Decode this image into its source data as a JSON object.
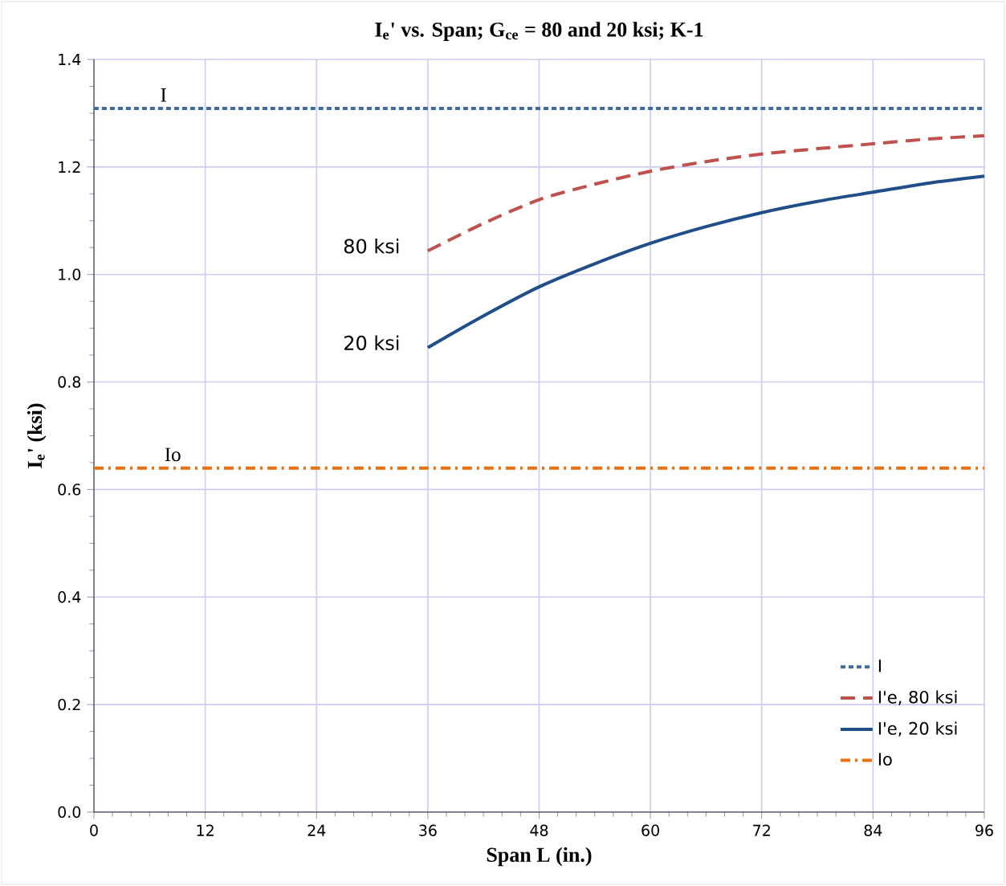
{
  "chart_data": {
    "type": "line",
    "title": "I$_{e}$' vs. Span; G$_{ce}$ = 80 and 20 ksi; K-1",
    "xlabel": "Span L  (in.)",
    "ylabel": "I$_{e}$'  (ksi)",
    "xlim": [
      0,
      96
    ],
    "xticks": [
      0,
      12,
      24,
      36,
      48,
      60,
      72,
      84,
      96
    ],
    "ylim": [
      0,
      1.4
    ],
    "yticks": [
      {
        "value": 0,
        "label": "0.0"
      },
      0.2,
      0.4,
      0.6,
      0.8,
      {
        "value": 1,
        "label": "1.0"
      },
      1.2,
      1.4
    ],
    "grid": true,
    "legend": "bottom right",
    "series": [
      {
        "name": "I",
        "color": "#3e6aa0",
        "line_style": "dotted",
        "x": [
          0,
          96
        ],
        "values": [
          1.309,
          1.309
        ]
      },
      {
        "name": "I'e, 80 ksi",
        "color": "#c0504d",
        "line_style": "dashed",
        "x": [
          36,
          42,
          48,
          54,
          60,
          66,
          72,
          78,
          84,
          90,
          96
        ],
        "values": [
          1.044,
          1.095,
          1.139,
          1.168,
          1.192,
          1.21,
          1.224,
          1.234,
          1.243,
          1.252,
          1.258
        ]
      },
      {
        "name": "I'e, 20 ksi",
        "color": "#1f4e89",
        "line_style": "solid",
        "x": [
          36,
          42,
          48,
          54,
          60,
          66,
          72,
          78,
          84,
          90,
          96
        ],
        "values": [
          0.864,
          0.923,
          0.977,
          1.02,
          1.058,
          1.089,
          1.115,
          1.136,
          1.153,
          1.17,
          1.183
        ]
      },
      {
        "name": "Io",
        "color": "#e8700f",
        "line_style": "dashdot",
        "x": [
          0,
          96
        ],
        "values": [
          0.64,
          0.64
        ]
      }
    ],
    "annotations": [
      {
        "text": "I",
        "x": 7.5,
        "y": 1.309
      },
      {
        "text": "Io",
        "x": 8.5,
        "y": 0.64
      },
      {
        "text": "80 ksi",
        "x": 36,
        "y": 1.044
      },
      {
        "text": "20 ksi",
        "x": 36,
        "y": 0.864
      }
    ]
  }
}
